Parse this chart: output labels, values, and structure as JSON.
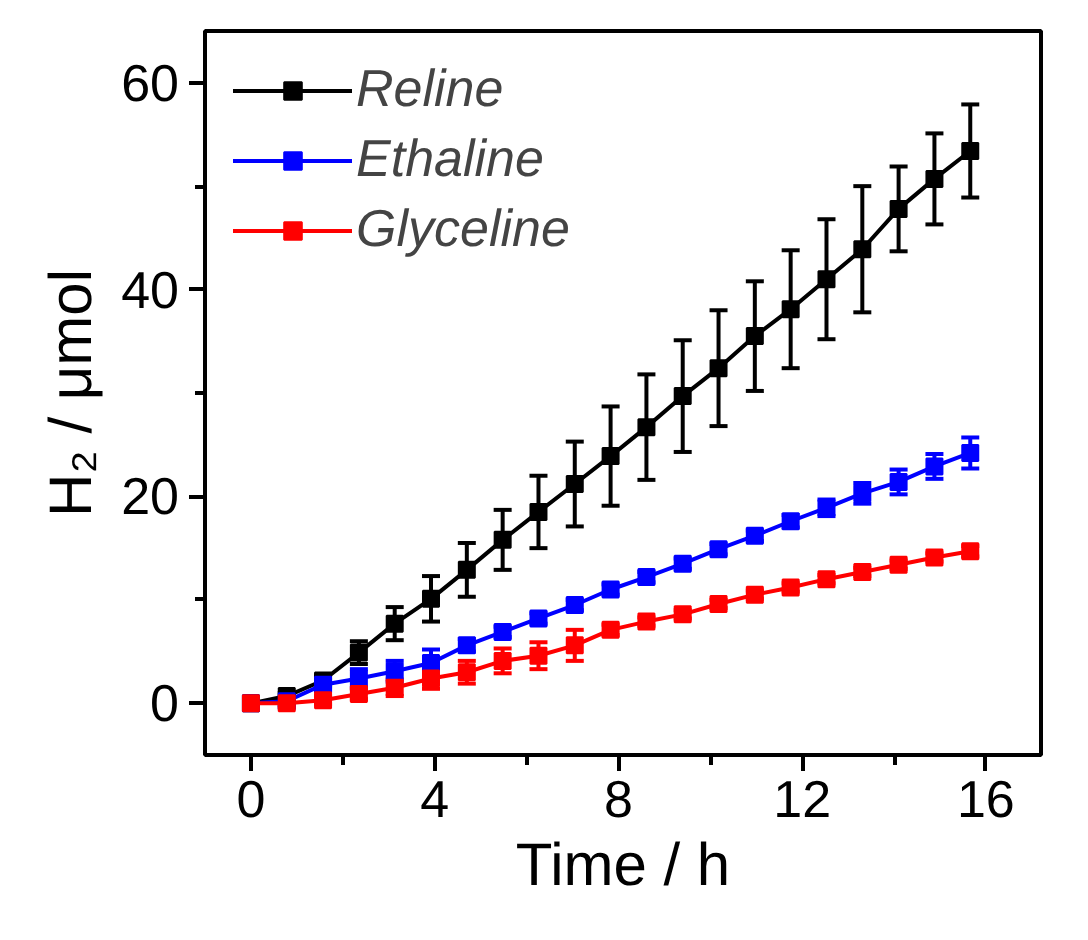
{
  "chart_data": {
    "type": "line",
    "xlabel": "Time / h",
    "ylabel": "H₂ / μmol",
    "x": [
      0,
      0.78,
      1.57,
      2.35,
      3.13,
      3.92,
      4.7,
      5.48,
      6.26,
      7.05,
      7.83,
      8.61,
      9.4,
      10.18,
      10.97,
      11.75,
      12.53,
      13.31,
      14.1,
      14.88,
      15.66
    ],
    "series": [
      {
        "name": "Reline",
        "color": "#000000",
        "values": [
          0,
          0.7,
          2.2,
          4.9,
          7.7,
          10.1,
          12.9,
          15.8,
          18.5,
          21.2,
          23.9,
          26.7,
          29.7,
          32.4,
          35.5,
          38.1,
          41.0,
          43.9,
          47.8,
          50.7,
          53.4
        ],
        "errors": [
          null,
          0.3,
          0.5,
          1.1,
          1.6,
          2.2,
          2.6,
          2.9,
          3.5,
          4.1,
          4.8,
          5.1,
          5.4,
          5.6,
          5.3,
          5.7,
          5.8,
          6.1,
          4.1,
          4.4,
          4.5
        ]
      },
      {
        "name": "Ethaline",
        "color": "#0000ff",
        "values": [
          0,
          0.2,
          1.8,
          2.4,
          3.1,
          3.9,
          5.6,
          6.9,
          8.2,
          9.5,
          11.0,
          12.2,
          13.5,
          14.9,
          16.2,
          17.6,
          18.9,
          20.3,
          21.4,
          22.9,
          24.2
        ],
        "errors": [
          null,
          0.4,
          0.5,
          0.9,
          1.0,
          1.3,
          0.6,
          0.5,
          0.5,
          0.5,
          0.5,
          0.5,
          0.5,
          0.5,
          0.5,
          0.6,
          0.8,
          1.0,
          1.2,
          1.2,
          1.5
        ]
      },
      {
        "name": "Glyceline",
        "color": "#ff0000",
        "values": [
          0,
          0,
          0.3,
          0.9,
          1.5,
          2.4,
          3.0,
          4.1,
          4.6,
          5.6,
          7.1,
          7.9,
          8.6,
          9.6,
          10.5,
          11.2,
          12.0,
          12.7,
          13.4,
          14.1,
          14.7
        ],
        "errors": [
          null,
          0.4,
          0.4,
          0.5,
          0.8,
          1.0,
          1.1,
          1.2,
          1.3,
          1.5,
          0.5,
          0.4,
          0.4,
          0.4,
          0.4,
          0.4,
          0.4,
          0.4,
          0.4,
          0.4,
          0.5
        ]
      }
    ],
    "xlim": [
      -1,
      17.2
    ],
    "xticks": [
      0,
      4,
      8,
      12,
      16
    ],
    "ylim": [
      -5,
      65
    ],
    "yticks": [
      0,
      20,
      40,
      60
    ],
    "grid": false,
    "legend": "top left",
    "marker": "square",
    "line_style": "solid"
  }
}
